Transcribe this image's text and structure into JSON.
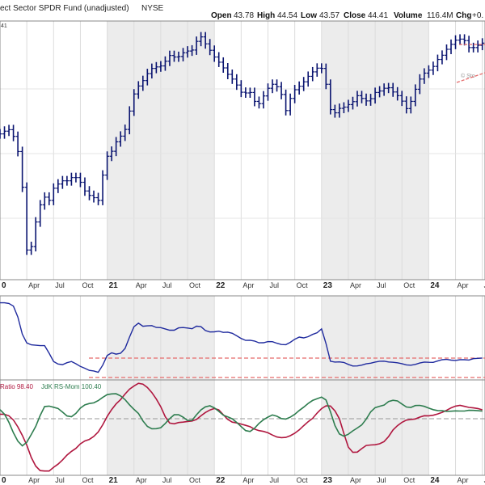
{
  "header": {
    "title": "ect Sector SPDR Fund (unadjusted)",
    "exchange": "NYSE",
    "open_label": "Open",
    "open_value": "43.78",
    "high_label": "High",
    "high_value": "44.54",
    "low_label": "Low",
    "low_value": "43.57",
    "close_label": "Close",
    "close_value": "44.41",
    "volume_label": "Volume",
    "volume_value": "116.4M",
    "chg_label": "Chg",
    "chg_value": "+0.",
    "price_tag": "41",
    "watermark": "© Sto"
  },
  "rs_legend": {
    "ratio_text": "Ratio 98.40",
    "mom_text": "JdK RS-Mom 100.40"
  },
  "x_axis": {
    "ticks": [
      {
        "label": "0",
        "bold": true,
        "t": 0.0
      },
      {
        "label": "Apr",
        "bold": false,
        "t": 3.0
      },
      {
        "label": "Jul",
        "bold": false,
        "t": 6.0
      },
      {
        "label": "Oct",
        "bold": false,
        "t": 9.0
      },
      {
        "label": "21",
        "bold": true,
        "t": 12.0
      },
      {
        "label": "Apr",
        "bold": false,
        "t": 15.0
      },
      {
        "label": "Jul",
        "bold": false,
        "t": 18.0
      },
      {
        "label": "Oct",
        "bold": false,
        "t": 21.0
      },
      {
        "label": "22",
        "bold": true,
        "t": 24.0
      },
      {
        "label": "Apr",
        "bold": false,
        "t": 27.0
      },
      {
        "label": "Jul",
        "bold": false,
        "t": 30.0
      },
      {
        "label": "Oct",
        "bold": false,
        "t": 33.0
      },
      {
        "label": "23",
        "bold": true,
        "t": 36.0
      },
      {
        "label": "Apr",
        "bold": false,
        "t": 39.0
      },
      {
        "label": "Jul",
        "bold": false,
        "t": 42.0
      },
      {
        "label": "Oct",
        "bold": false,
        "t": 45.0
      },
      {
        "label": "24",
        "bold": true,
        "t": 48.0
      },
      {
        "label": "Apr",
        "bold": false,
        "t": 51.0
      },
      {
        "label": "Ju",
        "bold": false,
        "t": 54.0
      }
    ],
    "shaded_years": [
      [
        12.0,
        24.0
      ],
      [
        36.0,
        48.0
      ]
    ]
  },
  "chart_data": [
    {
      "type": "line",
      "subtype": "ohlc-price",
      "title": "ect Sector SPDR Fund (unadjusted)",
      "x_unit": "months since Jan 2020",
      "xlim": [
        0.0,
        54.3
      ],
      "ylim": [
        -0.0216,
        1.021
      ],
      "y_note": "relative price level (no price scale visible)",
      "series": [
        {
          "x": [
            0.0,
            0.5,
            1.0,
            1.5,
            2.0,
            2.5,
            3.0,
            3.5,
            4.0,
            4.5,
            5.0,
            5.5,
            6.0,
            6.5,
            7.0,
            7.5,
            8.0,
            8.5,
            9.0,
            9.5,
            10.0,
            10.5,
            11.0,
            11.5,
            12.0,
            12.5,
            13.0,
            13.5,
            14.0,
            14.5,
            15.0,
            15.5,
            16.0,
            16.5,
            17.0,
            17.5,
            18.0,
            18.5,
            19.0,
            19.5,
            20.0,
            20.5,
            21.0,
            21.5,
            22.0,
            22.5,
            23.0,
            23.5,
            24.0,
            24.5,
            25.0,
            25.5,
            26.0,
            26.5,
            27.0,
            27.5,
            28.0,
            28.5,
            29.0,
            29.5,
            30.0,
            30.5,
            31.0,
            31.5,
            32.0,
            32.5,
            33.0,
            33.5,
            34.0,
            34.5,
            35.0,
            35.5,
            36.0,
            36.5,
            37.0,
            37.5,
            38.0,
            38.5,
            39.0,
            39.5,
            40.0,
            40.5,
            41.0,
            41.5,
            42.0,
            42.5,
            43.0,
            43.5,
            44.0,
            44.5,
            45.0,
            45.5,
            46.0,
            46.5,
            47.0,
            47.5,
            48.0,
            48.5,
            49.0,
            49.5,
            50.0,
            50.5,
            51.0,
            51.5,
            52.0,
            52.5,
            53.0,
            53.5,
            54.0
          ],
          "y": [
            0.566,
            0.577,
            0.583,
            0.556,
            0.495,
            0.351,
            0.098,
            0.112,
            0.211,
            0.28,
            0.311,
            0.298,
            0.347,
            0.364,
            0.377,
            0.377,
            0.39,
            0.39,
            0.371,
            0.336,
            0.318,
            0.309,
            0.298,
            0.4,
            0.476,
            0.496,
            0.534,
            0.557,
            0.584,
            0.658,
            0.727,
            0.759,
            0.781,
            0.809,
            0.83,
            0.836,
            0.84,
            0.859,
            0.882,
            0.876,
            0.878,
            0.893,
            0.9,
            0.904,
            0.939,
            0.957,
            0.929,
            0.903,
            0.876,
            0.855,
            0.832,
            0.806,
            0.787,
            0.763,
            0.734,
            0.731,
            0.733,
            0.697,
            0.688,
            0.719,
            0.75,
            0.766,
            0.756,
            0.725,
            0.66,
            0.709,
            0.744,
            0.758,
            0.776,
            0.798,
            0.816,
            0.831,
            0.83,
            0.766,
            0.664,
            0.651,
            0.669,
            0.674,
            0.684,
            0.696,
            0.72,
            0.709,
            0.699,
            0.708,
            0.733,
            0.739,
            0.75,
            0.752,
            0.735,
            0.72,
            0.698,
            0.668,
            0.697,
            0.746,
            0.787,
            0.811,
            0.823,
            0.838,
            0.866,
            0.883,
            0.907,
            0.927,
            0.944,
            0.948,
            0.942,
            0.914,
            0.914,
            0.923,
            0.932
          ]
        }
      ]
    },
    {
      "type": "line",
      "subtype": "relative-strength",
      "x_unit": "months since Jan 2020",
      "xlim": [
        0.0,
        54.3
      ],
      "ylim": [
        -0.0216,
        1.021
      ],
      "series": [
        {
          "x": [
            0.0,
            0.5,
            1.0,
            1.5,
            2.0,
            2.5,
            3.0,
            3.5,
            4.0,
            4.5,
            5.0,
            5.5,
            6.0,
            6.5,
            7.0,
            7.5,
            8.0,
            8.5,
            9.0,
            9.5,
            10.0,
            10.5,
            11.0,
            11.5,
            12.0,
            12.5,
            13.0,
            13.5,
            14.0,
            14.5,
            15.0,
            15.5,
            16.0,
            16.5,
            17.0,
            17.5,
            18.0,
            18.5,
            19.0,
            19.5,
            20.0,
            20.5,
            21.0,
            21.5,
            22.0,
            22.5,
            23.0,
            23.5,
            24.0,
            24.5,
            25.0,
            25.5,
            26.0,
            26.5,
            27.0,
            27.5,
            28.0,
            28.5,
            29.0,
            29.5,
            30.0,
            30.5,
            31.0,
            31.5,
            32.0,
            32.5,
            33.0,
            33.5,
            34.0,
            34.5,
            35.0,
            35.5,
            36.0,
            36.5,
            37.0,
            37.5,
            38.0,
            38.5,
            39.0,
            39.5,
            40.0,
            40.5,
            41.0,
            41.5,
            42.0,
            42.5,
            43.0,
            43.5,
            44.0,
            44.5,
            45.0,
            45.5,
            46.0,
            46.5,
            47.0,
            47.5,
            48.0,
            48.5,
            49.0,
            49.5,
            50.0,
            50.5,
            51.0,
            51.5,
            52.0,
            52.5,
            53.0,
            53.5,
            54.0
          ],
          "y": [
            0.935,
            0.935,
            0.927,
            0.894,
            0.758,
            0.546,
            0.438,
            0.413,
            0.408,
            0.403,
            0.403,
            0.309,
            0.207,
            0.176,
            0.168,
            0.192,
            0.207,
            0.179,
            0.146,
            0.123,
            0.097,
            0.09,
            0.073,
            0.162,
            0.281,
            0.314,
            0.298,
            0.309,
            0.368,
            0.509,
            0.638,
            0.682,
            0.644,
            0.649,
            0.652,
            0.629,
            0.627,
            0.611,
            0.595,
            0.595,
            0.624,
            0.628,
            0.622,
            0.613,
            0.645,
            0.639,
            0.591,
            0.573,
            0.575,
            0.583,
            0.568,
            0.571,
            0.557,
            0.526,
            0.493,
            0.469,
            0.471,
            0.461,
            0.439,
            0.44,
            0.454,
            0.453,
            0.434,
            0.417,
            0.415,
            0.445,
            0.483,
            0.51,
            0.5,
            0.515,
            0.543,
            0.564,
            0.611,
            0.43,
            0.21,
            0.2,
            0.202,
            0.195,
            0.171,
            0.151,
            0.152,
            0.162,
            0.178,
            0.186,
            0.2,
            0.21,
            0.211,
            0.201,
            0.197,
            0.191,
            0.18,
            0.165,
            0.161,
            0.171,
            0.188,
            0.2,
            0.197,
            0.196,
            0.213,
            0.229,
            0.233,
            0.224,
            0.22,
            0.229,
            0.229,
            0.225,
            0.242,
            0.246,
            0.25
          ]
        }
      ]
    },
    {
      "type": "line",
      "subtype": "jdk-rs-oscillators",
      "x_unit": "months since Jan 2020",
      "xlim": [
        0.0,
        54.3
      ],
      "ylim": [
        -0.0216,
        1.021
      ],
      "series": [
        {
          "name": "Ratio",
          "color": "#b0173f",
          "x": [
            0.0,
            0.5,
            1.0,
            1.5,
            2.0,
            2.5,
            3.0,
            3.5,
            4.0,
            4.5,
            5.0,
            5.5,
            6.0,
            6.5,
            7.0,
            7.5,
            8.0,
            8.5,
            9.0,
            9.5,
            10.0,
            10.5,
            11.0,
            11.5,
            12.0,
            12.5,
            13.0,
            13.5,
            14.0,
            14.5,
            15.0,
            15.5,
            16.0,
            16.5,
            17.0,
            17.5,
            18.0,
            18.5,
            19.0,
            19.5,
            20.0,
            20.5,
            21.0,
            21.5,
            22.0,
            22.5,
            23.0,
            23.5,
            24.0,
            24.5,
            25.0,
            25.5,
            26.0,
            26.5,
            27.0,
            27.5,
            28.0,
            28.5,
            29.0,
            29.5,
            30.0,
            30.5,
            31.0,
            31.5,
            32.0,
            32.5,
            33.0,
            33.5,
            34.0,
            34.5,
            35.0,
            35.5,
            36.0,
            36.5,
            37.0,
            37.5,
            38.0,
            38.5,
            39.0,
            39.5,
            40.0,
            40.5,
            41.0,
            41.5,
            42.0,
            42.5,
            43.0,
            43.5,
            44.0,
            44.5,
            45.0,
            45.5,
            46.0,
            46.5,
            47.0,
            47.5,
            48.0,
            48.5,
            49.0,
            49.5,
            50.0,
            50.5,
            51.0,
            51.5,
            52.0,
            52.5,
            53.0,
            53.5,
            54.0
          ],
          "y": [
            0.646,
            0.645,
            0.629,
            0.583,
            0.508,
            0.415,
            0.309,
            0.174,
            0.079,
            0.03,
            0.025,
            0.025,
            0.066,
            0.1,
            0.145,
            0.199,
            0.24,
            0.273,
            0.322,
            0.354,
            0.371,
            0.403,
            0.452,
            0.531,
            0.622,
            0.697,
            0.759,
            0.806,
            0.866,
            0.919,
            0.954,
            0.984,
            0.975,
            0.939,
            0.883,
            0.812,
            0.728,
            0.619,
            0.549,
            0.541,
            0.555,
            0.56,
            0.567,
            0.572,
            0.589,
            0.629,
            0.665,
            0.692,
            0.708,
            0.693,
            0.641,
            0.589,
            0.56,
            0.551,
            0.539,
            0.524,
            0.509,
            0.483,
            0.467,
            0.458,
            0.443,
            0.418,
            0.397,
            0.39,
            0.393,
            0.411,
            0.438,
            0.475,
            0.521,
            0.564,
            0.6,
            0.659,
            0.707,
            0.737,
            0.736,
            0.683,
            0.596,
            0.436,
            0.287,
            0.229,
            0.232,
            0.27,
            0.304,
            0.31,
            0.312,
            0.323,
            0.347,
            0.402,
            0.474,
            0.521,
            0.557,
            0.582,
            0.588,
            0.594,
            0.615,
            0.63,
            0.629,
            0.635,
            0.649,
            0.667,
            0.689,
            0.715,
            0.735,
            0.743,
            0.732,
            0.721,
            0.715,
            0.708,
            0.694
          ]
        },
        {
          "name": "JdK RS-Mom",
          "color": "#2e7d4f",
          "x": [
            0.0,
            0.5,
            1.0,
            1.5,
            2.0,
            2.5,
            3.0,
            3.5,
            4.0,
            4.5,
            5.0,
            5.5,
            6.0,
            6.5,
            7.0,
            7.5,
            8.0,
            8.5,
            9.0,
            9.5,
            10.0,
            10.5,
            11.0,
            11.5,
            12.0,
            12.5,
            13.0,
            13.5,
            14.0,
            14.5,
            15.0,
            15.5,
            16.0,
            16.5,
            17.0,
            17.5,
            18.0,
            18.5,
            19.0,
            19.5,
            20.0,
            20.5,
            21.0,
            21.5,
            22.0,
            22.5,
            23.0,
            23.5,
            24.0,
            24.5,
            25.0,
            25.5,
            26.0,
            26.5,
            27.0,
            27.5,
            28.0,
            28.5,
            29.0,
            29.5,
            30.0,
            30.5,
            31.0,
            31.5,
            32.0,
            32.5,
            33.0,
            33.5,
            34.0,
            34.5,
            35.0,
            35.5,
            36.0,
            36.5,
            37.0,
            37.5,
            38.0,
            38.5,
            39.0,
            39.5,
            40.0,
            40.5,
            41.0,
            41.5,
            42.0,
            42.5,
            43.0,
            43.5,
            44.0,
            44.5,
            45.0,
            45.5,
            46.0,
            46.5,
            47.0,
            47.5,
            48.0,
            48.5,
            49.0,
            49.5,
            50.0,
            50.5,
            51.0,
            51.5,
            52.0,
            52.5,
            53.0,
            53.5,
            54.0
          ],
          "y": [
            0.696,
            0.646,
            0.558,
            0.443,
            0.351,
            0.301,
            0.339,
            0.425,
            0.513,
            0.632,
            0.73,
            0.735,
            0.722,
            0.709,
            0.669,
            0.627,
            0.619,
            0.655,
            0.713,
            0.748,
            0.763,
            0.77,
            0.795,
            0.83,
            0.86,
            0.868,
            0.87,
            0.846,
            0.805,
            0.749,
            0.699,
            0.654,
            0.573,
            0.513,
            0.487,
            0.488,
            0.499,
            0.545,
            0.598,
            0.64,
            0.641,
            0.614,
            0.578,
            0.579,
            0.64,
            0.693,
            0.727,
            0.738,
            0.715,
            0.677,
            0.636,
            0.617,
            0.596,
            0.556,
            0.511,
            0.467,
            0.457,
            0.493,
            0.546,
            0.586,
            0.615,
            0.638,
            0.624,
            0.599,
            0.593,
            0.614,
            0.645,
            0.687,
            0.723,
            0.764,
            0.797,
            0.815,
            0.833,
            0.802,
            0.673,
            0.522,
            0.43,
            0.406,
            0.427,
            0.464,
            0.495,
            0.529,
            0.592,
            0.672,
            0.718,
            0.733,
            0.745,
            0.785,
            0.798,
            0.791,
            0.758,
            0.725,
            0.721,
            0.741,
            0.743,
            0.732,
            0.713,
            0.696,
            0.686,
            0.684,
            0.676,
            0.679,
            0.683,
            0.681,
            0.681,
            0.689,
            0.688,
            0.684,
            0.68
          ]
        }
      ]
    }
  ]
}
